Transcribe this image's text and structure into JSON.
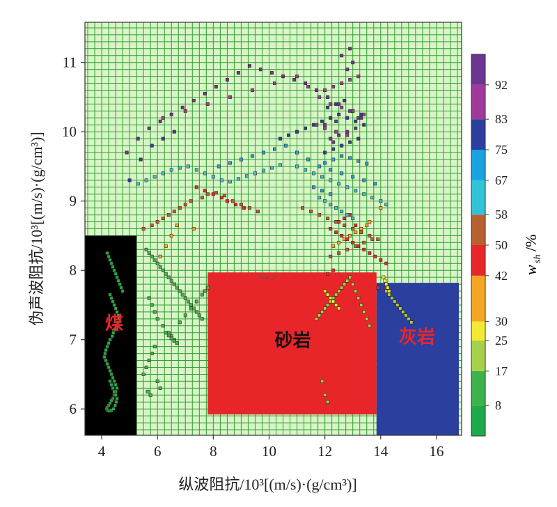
{
  "chart_data": {
    "type": "scatter",
    "xlabel": "纵波阻抗/10³[(m/s)·(g/cm³)]",
    "ylabel": "伪声波阻抗/10³[(m/s)·(g/cm³)]",
    "xlim": [
      3.4,
      16.9
    ],
    "ylim": [
      5.62,
      11.58
    ],
    "x_ticks": [
      4,
      6,
      8,
      10,
      12,
      14,
      16
    ],
    "y_ticks": [
      6,
      7,
      8,
      9,
      10,
      11
    ],
    "grid": true,
    "grid_color": "#2e9e2e",
    "plot_background": "#d9f5c8",
    "colorbar": {
      "label_main": "w",
      "label_sub": "sh",
      "label_unit": "/%",
      "ticks": [
        "8",
        "17",
        "25",
        "30",
        "42",
        "50",
        "58",
        "67",
        "75",
        "83",
        "92"
      ],
      "bands": [
        {
          "from": 0,
          "to": 8,
          "color": "#1faa4a"
        },
        {
          "from": 8,
          "to": 17,
          "color": "#3cb44b"
        },
        {
          "from": 17,
          "to": 25,
          "color": "#a7d14a"
        },
        {
          "from": 25,
          "to": 30,
          "color": "#f2ea35"
        },
        {
          "from": 30,
          "to": 42,
          "color": "#f5a623"
        },
        {
          "from": 42,
          "to": 50,
          "color": "#e8262a"
        },
        {
          "from": 50,
          "to": 58,
          "color": "#b8612e"
        },
        {
          "from": 58,
          "to": 67,
          "color": "#33c3d8"
        },
        {
          "from": 67,
          "to": 75,
          "color": "#1aa3e0"
        },
        {
          "from": 75,
          "to": 83,
          "color": "#2b3f9e"
        },
        {
          "from": 83,
          "to": 92,
          "color": "#a03a9a"
        },
        {
          "from": 92,
          "to": 100,
          "color": "#6b3590"
        }
      ]
    },
    "zones": [
      {
        "name": "煤",
        "x": [
          3.4,
          5.25
        ],
        "y": [
          5.62,
          8.5
        ],
        "fill": "#000000",
        "label_color": "#e8262a",
        "label_x": 4.45,
        "label_y": 7.15
      },
      {
        "name": "砂岩",
        "x": [
          7.8,
          13.85
        ],
        "y": [
          5.92,
          7.97
        ],
        "fill": "#e8262a",
        "label_color": "#111111",
        "label_x": 10.85,
        "label_y": 6.9,
        "tag": "Zone_2"
      },
      {
        "name": "灰岩",
        "x": [
          13.85,
          16.8
        ],
        "y": [
          5.62,
          7.82
        ],
        "fill": "#2b3f9e",
        "label_color": "#e8262a",
        "label_x": 15.3,
        "label_y": 6.95
      }
    ],
    "series_groups": [
      {
        "wsh": 5,
        "x": [
          4.2,
          4.25,
          4.3,
          4.35,
          4.4,
          4.45,
          4.5,
          4.55,
          4.6,
          4.65,
          4.7,
          4.75,
          4.3,
          4.35,
          4.4,
          4.45,
          4.5,
          4.55,
          4.6,
          4.62,
          4.58,
          4.52,
          4.48,
          4.42,
          4.38,
          4.3,
          4.25,
          4.2,
          4.15,
          4.12,
          4.1,
          4.15,
          4.2,
          4.25,
          4.3,
          4.35,
          4.4,
          4.45,
          4.5,
          4.55,
          4.5,
          4.45,
          4.4,
          4.35,
          4.3,
          4.25,
          4.2,
          4.18,
          4.22,
          4.28,
          4.35,
          4.42,
          4.48,
          4.52,
          4.55,
          4.5,
          4.45,
          4.4,
          4.35,
          4.3
        ],
        "y": [
          8.25,
          8.2,
          8.15,
          8.1,
          8.05,
          8.0,
          7.95,
          7.9,
          7.85,
          7.8,
          7.75,
          7.7,
          7.65,
          7.6,
          7.55,
          7.5,
          7.45,
          7.4,
          7.35,
          7.3,
          7.25,
          7.2,
          7.15,
          7.1,
          7.05,
          7.0,
          6.95,
          6.9,
          6.85,
          6.8,
          6.75,
          6.7,
          6.65,
          6.6,
          6.55,
          6.5,
          6.45,
          6.4,
          6.35,
          6.3,
          6.25,
          6.2,
          6.15,
          6.12,
          6.08,
          6.05,
          6.02,
          6.0,
          5.98,
          5.97,
          5.98,
          6.0,
          6.05,
          6.1,
          6.15,
          6.2,
          6.25,
          6.3,
          6.35,
          6.4
        ]
      },
      {
        "wsh": 12,
        "x": [
          5.6,
          5.7,
          5.8,
          5.9,
          6.0,
          6.1,
          6.2,
          6.3,
          6.4,
          6.5,
          6.6,
          6.7,
          6.8,
          6.9,
          7.0,
          7.1,
          7.2,
          7.3,
          7.4,
          7.5,
          7.6,
          5.7,
          5.8,
          5.9,
          6.0,
          6.2,
          6.4,
          6.5,
          6.6,
          6.7,
          6.6,
          6.5,
          6.4,
          6.3,
          5.9,
          5.8,
          5.7,
          5.6,
          5.5,
          6.0,
          6.1,
          6.8,
          7.0,
          7.2,
          7.4,
          7.6,
          7.7,
          7.8,
          5.65,
          5.75
        ],
        "y": [
          8.3,
          8.25,
          8.2,
          8.15,
          8.1,
          8.05,
          8.0,
          7.95,
          7.9,
          7.85,
          7.8,
          7.75,
          7.7,
          7.65,
          7.6,
          7.55,
          7.5,
          7.45,
          7.4,
          7.35,
          7.3,
          7.6,
          7.5,
          7.4,
          7.3,
          7.2,
          7.1,
          7.05,
          7.0,
          6.95,
          6.98,
          7.02,
          7.06,
          7.1,
          6.9,
          6.8,
          6.7,
          6.6,
          6.5,
          6.4,
          6.3,
          7.25,
          7.35,
          7.45,
          7.55,
          7.65,
          7.7,
          7.75,
          6.25,
          6.2
        ]
      },
      {
        "wsh": 21,
        "x": [
          11.7,
          11.8,
          11.9,
          12.0,
          12.1,
          12.2,
          12.3,
          12.4,
          12.5,
          12.6,
          12.7,
          12.8,
          12.9,
          13.0,
          13.1,
          13.2,
          13.3,
          13.4,
          13.5,
          13.6,
          14.2,
          14.3,
          14.4,
          14.5,
          14.6,
          14.7,
          14.8,
          14.9,
          15.0,
          15.1,
          11.9,
          12.0,
          12.1
        ],
        "y": [
          7.3,
          7.35,
          7.4,
          7.45,
          7.5,
          7.55,
          7.6,
          7.65,
          7.7,
          7.75,
          7.8,
          7.85,
          7.9,
          7.8,
          7.7,
          7.6,
          7.5,
          7.4,
          7.3,
          7.2,
          7.7,
          7.65,
          7.6,
          7.55,
          7.5,
          7.45,
          7.4,
          7.35,
          7.3,
          7.25,
          6.4,
          6.2,
          6.1
        ]
      },
      {
        "wsh": 28,
        "x": [
          12.0,
          12.1,
          12.2,
          12.3,
          12.4,
          12.5,
          14.1,
          14.15,
          14.2,
          14.25,
          14.3
        ],
        "y": [
          7.7,
          7.65,
          7.6,
          7.55,
          7.5,
          7.45,
          7.9,
          7.85,
          7.8,
          7.75,
          7.7
        ]
      },
      {
        "wsh": 36,
        "x": [
          6.1,
          6.3,
          6.5,
          6.7,
          7.3,
          12.3,
          12.5,
          12.7,
          12.9,
          13.1,
          13.3,
          13.5,
          13.6,
          14.0
        ],
        "y": [
          8.2,
          8.35,
          8.5,
          8.65,
          8.6,
          8.35,
          8.4,
          8.45,
          8.5,
          8.55,
          8.6,
          8.65,
          8.7,
          8.9
        ]
      },
      {
        "wsh": 46,
        "x": [
          7.4,
          7.7,
          8.0,
          8.3,
          8.5,
          8.8,
          9.1,
          12.2,
          12.4,
          12.6,
          12.8,
          13.0,
          13.2,
          13.4,
          13.6,
          13.8,
          14.0,
          14.2,
          12.5,
          12.7,
          12.9,
          13.1,
          13.3,
          12.3,
          12.1,
          13.9
        ],
        "y": [
          9.2,
          9.15,
          9.1,
          9.05,
          9.0,
          8.95,
          8.9,
          8.6,
          8.55,
          8.5,
          8.45,
          8.4,
          8.35,
          8.3,
          8.25,
          8.2,
          8.15,
          8.1,
          8.7,
          8.75,
          8.8,
          8.65,
          8.55,
          8.0,
          7.95,
          7.75
        ]
      },
      {
        "wsh": 54,
        "x": [
          5.5,
          5.8,
          6.0,
          6.2,
          6.4,
          6.6,
          6.8,
          7.0,
          7.2,
          7.6,
          7.8,
          8.1,
          8.4,
          8.7,
          9.0,
          9.3,
          9.6,
          11.2,
          11.5,
          11.8,
          12.1,
          12.4,
          12.7,
          13.0,
          13.3,
          13.6,
          13.9,
          12.2,
          12.5,
          12.8,
          13.1,
          13.4,
          13.7
        ],
        "y": [
          8.6,
          8.65,
          8.7,
          8.75,
          8.8,
          8.85,
          8.9,
          8.95,
          9.0,
          9.05,
          9.1,
          9.12,
          9.08,
          9.0,
          8.95,
          8.9,
          8.85,
          8.9,
          8.85,
          8.8,
          8.75,
          8.7,
          8.65,
          8.6,
          8.55,
          8.5,
          8.45,
          8.2,
          8.25,
          8.3,
          8.35,
          8.4,
          8.45
        ]
      },
      {
        "wsh": 62,
        "x": [
          5.3,
          5.6,
          5.9,
          6.2,
          6.5,
          6.8,
          7.1,
          7.4,
          7.7,
          8.0,
          8.3,
          8.6,
          8.9,
          9.2,
          9.5,
          9.8,
          10.1,
          10.4,
          11.0,
          11.3,
          11.6,
          11.9,
          12.2,
          12.5,
          12.8,
          13.1,
          13.4,
          13.7,
          14.0,
          14.2,
          11.8,
          12.0,
          12.2,
          12.4,
          12.6,
          12.8,
          13.0
        ],
        "y": [
          9.25,
          9.3,
          9.35,
          9.4,
          9.45,
          9.48,
          9.5,
          9.45,
          9.4,
          9.35,
          9.3,
          9.28,
          9.32,
          9.36,
          9.4,
          9.44,
          9.48,
          9.52,
          9.5,
          9.45,
          9.4,
          9.35,
          9.3,
          9.25,
          9.2,
          9.15,
          9.1,
          9.05,
          9.0,
          8.95,
          9.05,
          9.0,
          8.95,
          8.9,
          8.85,
          8.8,
          8.75
        ]
      },
      {
        "wsh": 71,
        "x": [
          8.2,
          8.6,
          9.0,
          9.4,
          9.8,
          10.2,
          10.6,
          11.0,
          11.4,
          11.8,
          12.2,
          12.6,
          13.0,
          13.4,
          13.8,
          12.0,
          12.3,
          12.6,
          12.9,
          13.2,
          13.5,
          11.6,
          11.9,
          12.2
        ],
        "y": [
          9.5,
          9.55,
          9.6,
          9.65,
          9.7,
          9.75,
          9.8,
          9.7,
          9.6,
          9.5,
          9.45,
          9.4,
          9.35,
          9.3,
          9.25,
          9.55,
          9.6,
          9.65,
          9.62,
          9.58,
          9.54,
          9.2,
          9.15,
          9.1
        ]
      },
      {
        "wsh": 79,
        "x": [
          5.0,
          5.4,
          5.8,
          6.2,
          6.6,
          10.4,
          10.7,
          11.0,
          11.3,
          11.6,
          11.9,
          12.2,
          12.5,
          12.8,
          13.1,
          13.4,
          12.0,
          12.3,
          12.6,
          12.9,
          13.2,
          12.1,
          12.4,
          12.7,
          13.0,
          13.3
        ],
        "y": [
          9.3,
          9.6,
          9.8,
          9.9,
          10.0,
          9.9,
          9.95,
          10.0,
          10.05,
          10.1,
          10.15,
          10.2,
          10.25,
          10.2,
          10.15,
          10.1,
          9.7,
          9.75,
          9.8,
          9.85,
          9.9,
          10.35,
          10.4,
          10.45,
          10.3,
          10.25
        ]
      },
      {
        "wsh": 88,
        "x": [
          6.2,
          7.0,
          7.8,
          8.6,
          9.4,
          10.2,
          11.0,
          11.4,
          11.8,
          12.2,
          12.6,
          13.0,
          13.4,
          12.0,
          12.3,
          12.6,
          12.9,
          13.2,
          11.7,
          12.0,
          12.4,
          12.8
        ],
        "y": [
          10.2,
          10.3,
          10.4,
          10.5,
          10.6,
          10.7,
          10.8,
          10.65,
          10.5,
          10.4,
          10.35,
          10.3,
          10.25,
          10.6,
          10.65,
          10.7,
          10.75,
          10.8,
          10.1,
          10.05,
          10.0,
          9.95
        ]
      },
      {
        "wsh": 96,
        "x": [
          4.9,
          5.3,
          5.7,
          6.1,
          6.5,
          6.9,
          7.3,
          7.7,
          8.1,
          8.5,
          8.9,
          9.3,
          9.7,
          10.1,
          10.5,
          10.9,
          11.3,
          11.7,
          12.1,
          12.5,
          12.9,
          13.3,
          12.2,
          12.5,
          12.8,
          13.1,
          12.0,
          12.4,
          12.8,
          13.0,
          12.6,
          12.9,
          13.2,
          12.3
        ],
        "y": [
          9.7,
          9.9,
          10.05,
          10.15,
          10.25,
          10.35,
          10.45,
          10.55,
          10.65,
          10.75,
          10.85,
          10.95,
          10.9,
          10.85,
          10.8,
          10.75,
          10.7,
          10.6,
          10.5,
          10.4,
          10.3,
          10.2,
          9.9,
          9.95,
          10.0,
          10.05,
          10.1,
          10.15,
          10.9,
          11.0,
          11.1,
          11.2,
          10.2,
          9.85
        ]
      }
    ]
  }
}
